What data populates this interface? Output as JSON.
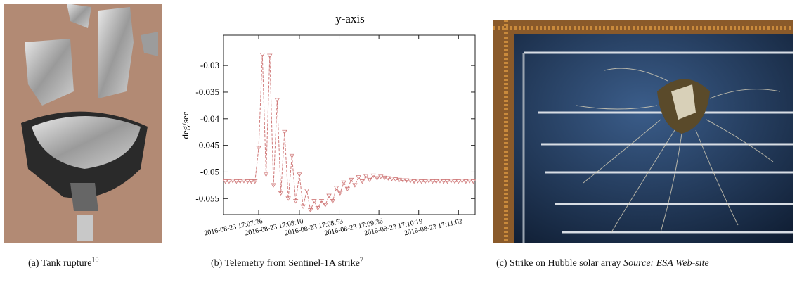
{
  "chart_data": {
    "type": "line",
    "title": "y-axis",
    "y_label": "deg/sec",
    "x": [
      "2016-08-23 17:06:50",
      "2016-08-23 17:06:54",
      "2016-08-23 17:06:58",
      "2016-08-23 17:07:02",
      "2016-08-23 17:07:06",
      "2016-08-23 17:07:10",
      "2016-08-23 17:07:14",
      "2016-08-23 17:07:18",
      "2016-08-23 17:07:22",
      "2016-08-23 17:07:26",
      "2016-08-23 17:07:30",
      "2016-08-23 17:07:34",
      "2016-08-23 17:07:38",
      "2016-08-23 17:07:42",
      "2016-08-23 17:07:46",
      "2016-08-23 17:07:50",
      "2016-08-23 17:07:54",
      "2016-08-23 17:07:58",
      "2016-08-23 17:08:02",
      "2016-08-23 17:08:06",
      "2016-08-23 17:08:10",
      "2016-08-23 17:08:14",
      "2016-08-23 17:08:18",
      "2016-08-23 17:08:22",
      "2016-08-23 17:08:26",
      "2016-08-23 17:08:30",
      "2016-08-23 17:08:34",
      "2016-08-23 17:08:38",
      "2016-08-23 17:08:42",
      "2016-08-23 17:08:46",
      "2016-08-23 17:08:50",
      "2016-08-23 17:08:54",
      "2016-08-23 17:08:58",
      "2016-08-23 17:09:02",
      "2016-08-23 17:09:06",
      "2016-08-23 17:09:10",
      "2016-08-23 17:09:14",
      "2016-08-23 17:09:18",
      "2016-08-23 17:09:22",
      "2016-08-23 17:09:26",
      "2016-08-23 17:09:30",
      "2016-08-23 17:09:34",
      "2016-08-23 17:09:38",
      "2016-08-23 17:09:42",
      "2016-08-23 17:09:46",
      "2016-08-23 17:09:50",
      "2016-08-23 17:09:54",
      "2016-08-23 17:09:58",
      "2016-08-23 17:10:02",
      "2016-08-23 17:10:06",
      "2016-08-23 17:10:10",
      "2016-08-23 17:10:14",
      "2016-08-23 17:10:18",
      "2016-08-23 17:10:22",
      "2016-08-23 17:10:26",
      "2016-08-23 17:10:30",
      "2016-08-23 17:10:34",
      "2016-08-23 17:10:38",
      "2016-08-23 17:10:42",
      "2016-08-23 17:10:46",
      "2016-08-23 17:10:50",
      "2016-08-23 17:10:54",
      "2016-08-23 17:10:58",
      "2016-08-23 17:11:02",
      "2016-08-23 17:11:06",
      "2016-08-23 17:11:10",
      "2016-08-23 17:11:14",
      "2016-08-23 17:11:18"
    ],
    "series": [
      {
        "color": "#d07a7a",
        "values": [
          -0.0518,
          -0.0518,
          -0.0517,
          -0.0518,
          -0.0518,
          -0.0517,
          -0.0518,
          -0.0518,
          -0.0518,
          -0.0455,
          -0.028,
          -0.0505,
          -0.0282,
          -0.0525,
          -0.0365,
          -0.054,
          -0.0425,
          -0.055,
          -0.047,
          -0.0555,
          -0.0505,
          -0.0565,
          -0.0535,
          -0.0572,
          -0.0555,
          -0.0568,
          -0.0555,
          -0.0562,
          -0.0545,
          -0.0555,
          -0.053,
          -0.054,
          -0.052,
          -0.0532,
          -0.0515,
          -0.0525,
          -0.051,
          -0.0518,
          -0.0508,
          -0.0515,
          -0.0507,
          -0.0512,
          -0.0509,
          -0.0511,
          -0.0512,
          -0.0513,
          -0.0514,
          -0.0515,
          -0.0516,
          -0.0516,
          -0.0517,
          -0.0518,
          -0.0517,
          -0.0518,
          -0.0518,
          -0.0517,
          -0.0518,
          -0.0518,
          -0.0517,
          -0.0518,
          -0.0518,
          -0.0517,
          -0.0518,
          -0.0518,
          -0.0517,
          -0.0518,
          -0.0517,
          -0.0518
        ]
      }
    ],
    "xlim": [
      "2016-08-23 17:06:48",
      "2016-08-23 17:11:20"
    ],
    "xticks": [
      "2016-08-23 17:07:26",
      "2016-08-23 17:08:10",
      "2016-08-23 17:08:53",
      "2016-08-23 17:09:36",
      "2016-08-23 17:10:19",
      "2016-08-23 17:11:02"
    ],
    "ylim": [
      -0.058,
      -0.0243
    ],
    "yticks": [
      -0.055,
      -0.05,
      -0.045,
      -0.04,
      -0.035,
      -0.03
    ]
  },
  "captions": {
    "a": {
      "text": "(a) Tank rupture",
      "ref": "10"
    },
    "b": {
      "text": "(b) Telemetry from Sentinel-1A strike",
      "ref": "7"
    },
    "c": {
      "text": "(c) Strike on Hubble solar array",
      "source": "Source: ESA Web-site"
    }
  }
}
